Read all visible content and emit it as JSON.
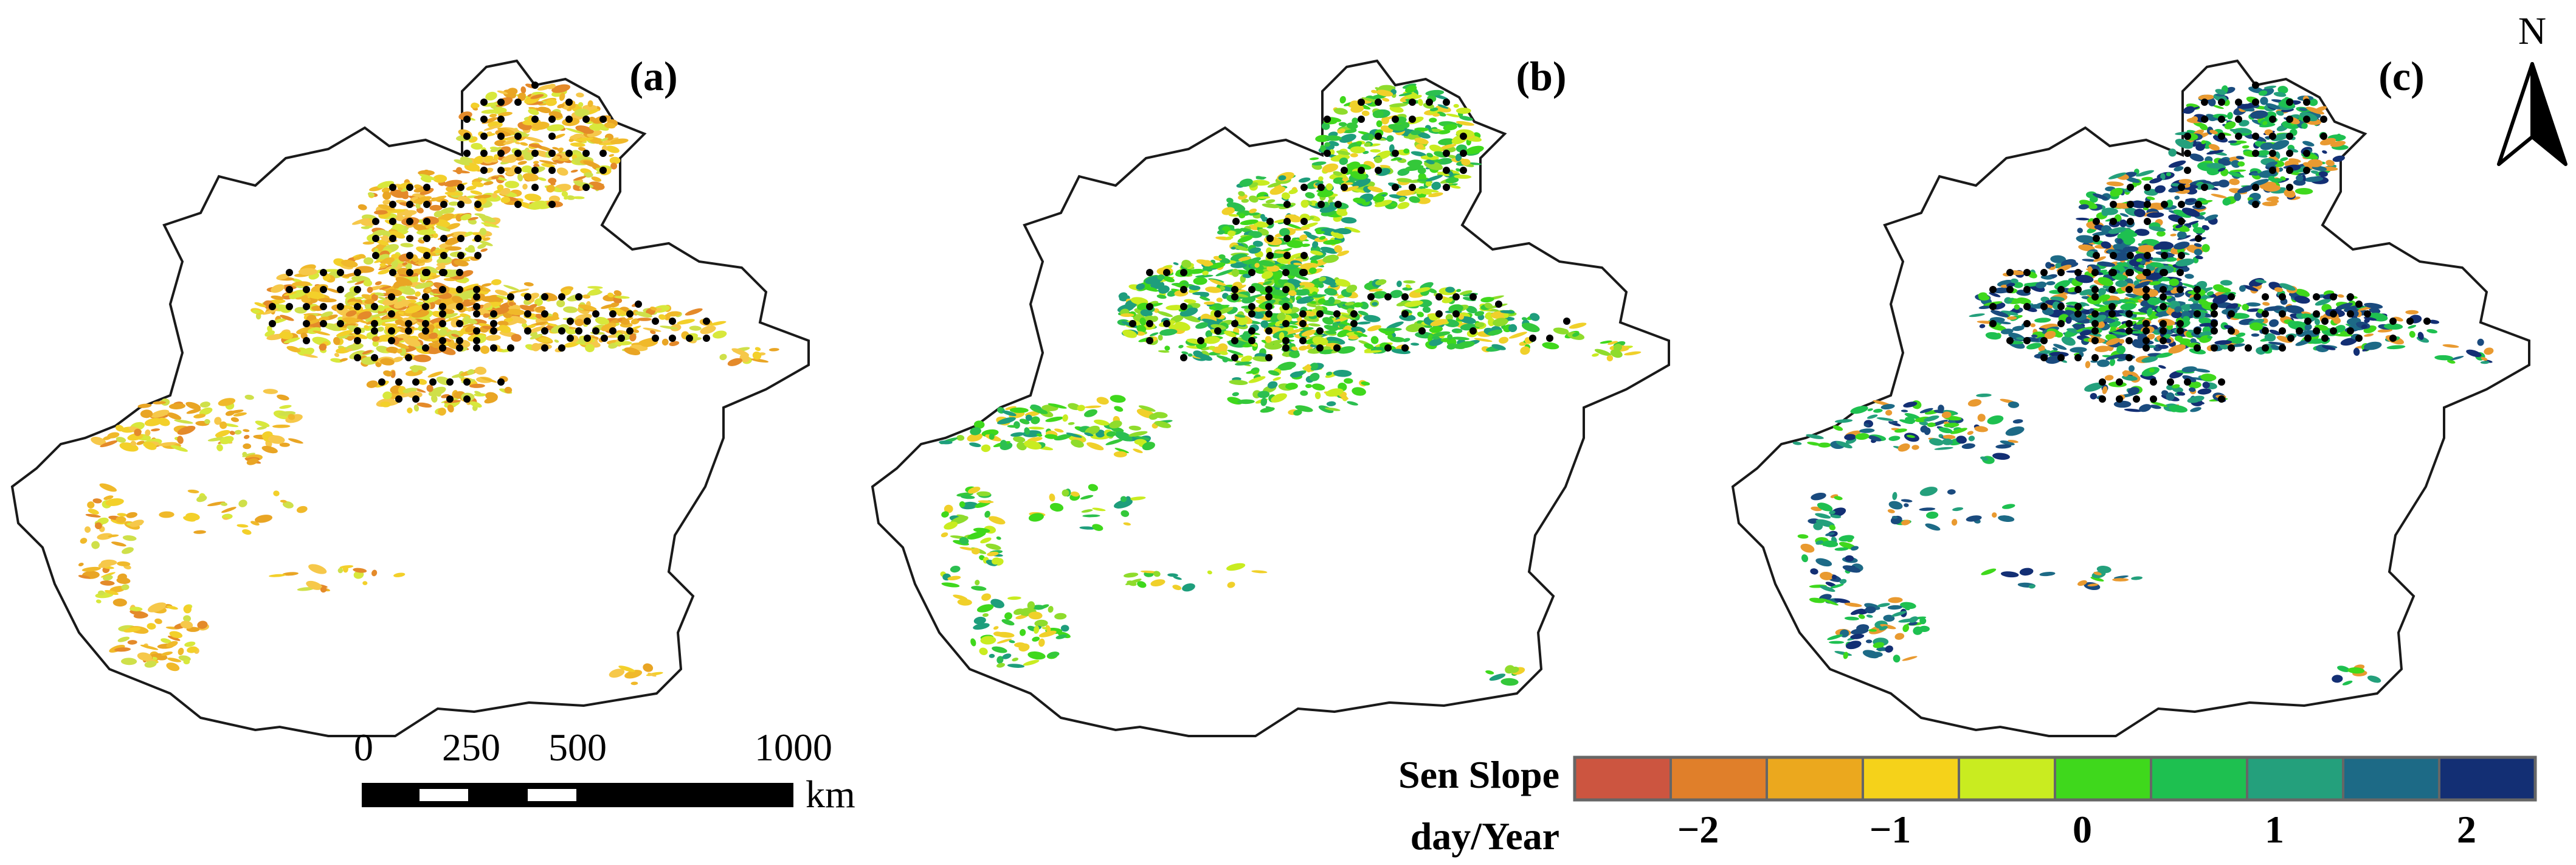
{
  "panels": [
    {
      "label": "(a)",
      "palette": "orange"
    },
    {
      "label": "(b)",
      "palette": "green"
    },
    {
      "label": "(c)",
      "palette": "blue"
    }
  ],
  "north_arrow": {
    "label": "N"
  },
  "scale_bar": {
    "ticks": [
      "0",
      "250",
      "500",
      "1000"
    ],
    "unit": "km"
  },
  "legend": {
    "title_line1": "Sen Slope",
    "title_line2": "day/Year",
    "colors": [
      "#cc5540",
      "#e07f2a",
      "#eba81e",
      "#f5d21a",
      "#c9ec20",
      "#3fd81c",
      "#1ec050",
      "#24a07c",
      "#1d6a86",
      "#132f74"
    ],
    "tick_labels": [
      "−2",
      "−1",
      "0",
      "1",
      "2"
    ]
  },
  "significance_marker": {
    "color": "#000000"
  }
}
